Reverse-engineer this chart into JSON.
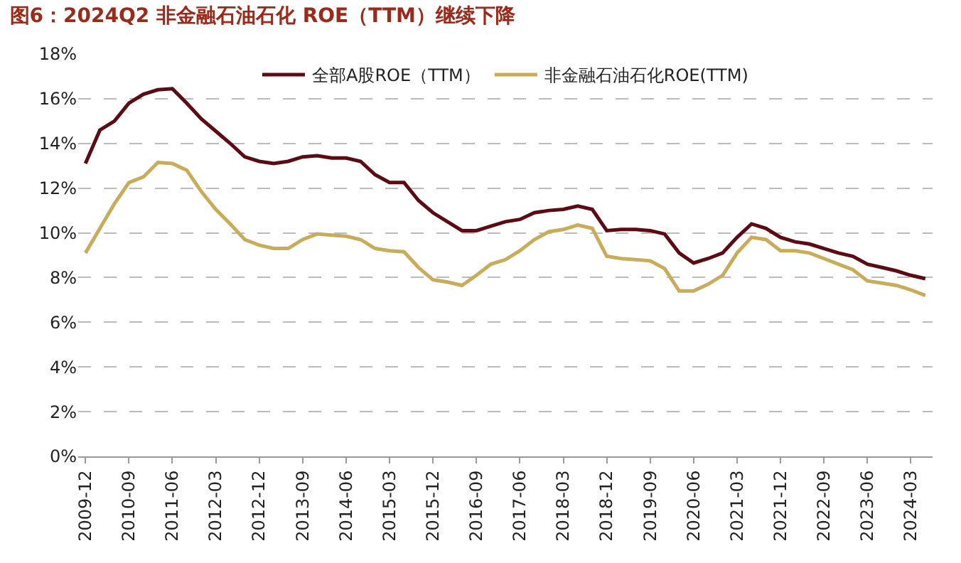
{
  "chart_data": {
    "type": "line",
    "title": "图6：2024Q2 非金融石油石化 ROE（TTM）继续下降",
    "categories": [
      "2009-12",
      null,
      null,
      "2010-09",
      null,
      null,
      "2011-06",
      null,
      null,
      "2012-03",
      null,
      null,
      "2012-12",
      null,
      null,
      "2013-09",
      null,
      null,
      "2014-06",
      null,
      null,
      "2015-03",
      null,
      null,
      "2015-12",
      null,
      null,
      "2016-09",
      null,
      null,
      "2017-06",
      null,
      null,
      "2018-03",
      null,
      null,
      "2018-12",
      null,
      null,
      "2019-09",
      null,
      null,
      "2020-06",
      null,
      null,
      "2021-03",
      null,
      null,
      "2021-12",
      null,
      null,
      "2022-09",
      null,
      null,
      "2023-06",
      null,
      null,
      "2024-03",
      null
    ],
    "series": [
      {
        "name": "全部A股ROE（TTM）",
        "color": "#5c0a14",
        "values": [
          13.1,
          14.6,
          15.0,
          15.8,
          16.2,
          16.4,
          16.45,
          15.8,
          15.1,
          14.55,
          14.0,
          13.4,
          13.2,
          13.1,
          13.2,
          13.4,
          13.45,
          13.35,
          13.35,
          13.2,
          12.6,
          12.25,
          12.25,
          11.45,
          10.9,
          10.5,
          10.1,
          10.1,
          10.3,
          10.5,
          10.6,
          10.9,
          11.0,
          11.05,
          11.2,
          11.05,
          10.1,
          10.15,
          10.15,
          10.1,
          9.95,
          9.1,
          8.65,
          8.85,
          9.1,
          9.8,
          10.4,
          10.2,
          9.8,
          9.6,
          9.5,
          9.3,
          9.1,
          8.95,
          8.6,
          8.45,
          8.3,
          8.1,
          7.95
        ]
      },
      {
        "name": "非金融石油石化ROE(TTM)",
        "color": "#c8ac5a",
        "values": [
          9.1,
          10.2,
          11.3,
          12.25,
          12.5,
          13.15,
          13.1,
          12.8,
          11.85,
          11.05,
          10.4,
          9.7,
          9.45,
          9.3,
          9.3,
          9.7,
          9.95,
          9.9,
          9.85,
          9.7,
          9.3,
          9.2,
          9.15,
          8.45,
          7.9,
          7.8,
          7.65,
          8.1,
          8.6,
          8.8,
          9.2,
          9.7,
          10.05,
          10.15,
          10.35,
          10.2,
          8.95,
          8.85,
          8.8,
          8.75,
          8.4,
          7.4,
          7.4,
          7.7,
          8.1,
          9.1,
          9.8,
          9.7,
          9.2,
          9.2,
          9.1,
          8.85,
          8.6,
          8.35,
          7.85,
          7.75,
          7.65,
          7.45,
          7.2
        ]
      }
    ],
    "ylim": [
      0,
      18
    ],
    "yticks": [
      {
        "value": 0,
        "label": "0%"
      },
      {
        "value": 2,
        "label": "2%"
      },
      {
        "value": 4,
        "label": "4%"
      },
      {
        "value": 6,
        "label": "6%"
      },
      {
        "value": 8,
        "label": "8%"
      },
      {
        "value": 10,
        "label": "10%"
      },
      {
        "value": 12,
        "label": "12%"
      },
      {
        "value": 14,
        "label": "14%"
      },
      {
        "value": 16,
        "label": "16%"
      },
      {
        "value": 18,
        "label": "18%"
      }
    ],
    "grid": "y",
    "legend": "top",
    "marker": "none",
    "line_style": "solid"
  }
}
